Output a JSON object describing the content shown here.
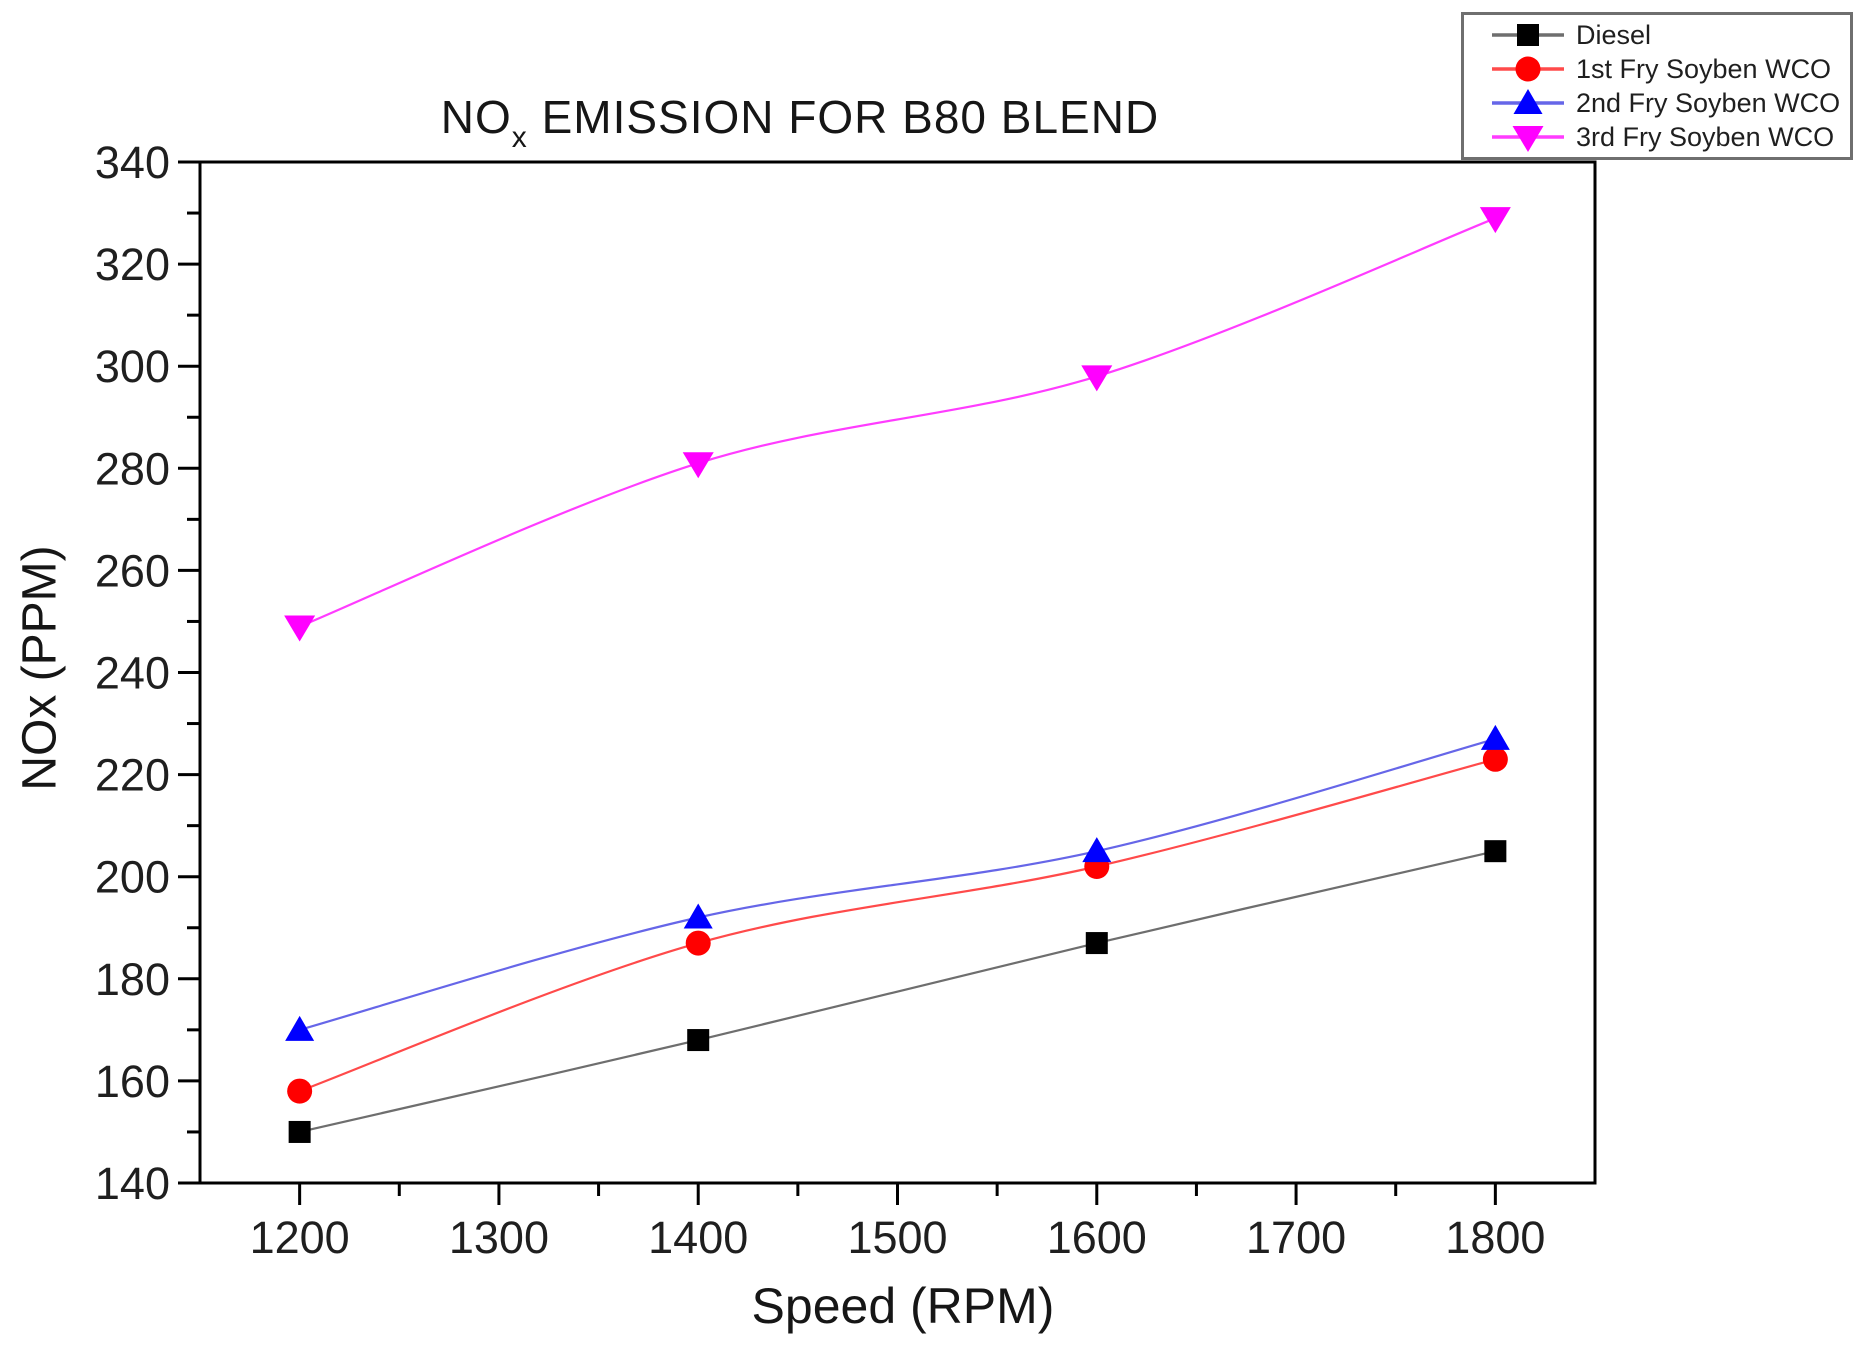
{
  "title": {
    "prefix": "NO",
    "sub": "x",
    "suffix": " EMISSION FOR B80 BLEND"
  },
  "chart_data": {
    "type": "line",
    "title": "NOx EMISSION FOR B80 BLEND",
    "xlabel": "Speed (RPM)",
    "ylabel": "NOx (PPM)",
    "x": [
      1200,
      1400,
      1600,
      1800
    ],
    "series": [
      {
        "name": "Diesel",
        "marker": "square",
        "color": "#000000",
        "line_color": "#6e6e6e",
        "values": [
          150,
          168,
          187,
          205
        ]
      },
      {
        "name": "1st Fry Soyben WCO",
        "marker": "circle",
        "color": "#ff0000",
        "line_color": "#ff4a4a",
        "values": [
          158,
          187,
          202,
          223
        ]
      },
      {
        "name": "2nd Fry Soyben WCO",
        "marker": "triangle-up",
        "color": "#0000ff",
        "line_color": "#6666e8",
        "values": [
          170,
          192,
          205,
          227
        ]
      },
      {
        "name": "3rd Fry Soyben WCO",
        "marker": "triangle-down",
        "color": "#ff00ff",
        "line_color": "#ff3cff",
        "values": [
          249,
          281,
          298,
          329
        ]
      }
    ],
    "xlim": [
      1150,
      1850
    ],
    "ylim": [
      140,
      340
    ],
    "x_ticks": [
      1200,
      1300,
      1400,
      1500,
      1600,
      1700,
      1800
    ],
    "y_ticks": [
      140,
      160,
      180,
      200,
      220,
      240,
      260,
      280,
      300,
      320,
      340
    ],
    "minor_ticks": true,
    "grid": false,
    "legend_position": "top-right",
    "axis_color": "#000000",
    "background_color": "#ffffff"
  }
}
